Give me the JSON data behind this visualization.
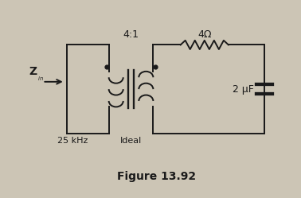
{
  "bg_color": "#ccc5b5",
  "title": "Figure 13.92",
  "title_fontsize": 10,
  "z_in_label": "Z",
  "z_in_sub": "in",
  "transformer_ratio": "4:1",
  "ideal_label": "Ideal",
  "resistor_label": "4Ω",
  "capacitor_label": "2 μF",
  "freq_label": "25 kHz",
  "line_color": "#1a1a1a",
  "lw": 1.4
}
